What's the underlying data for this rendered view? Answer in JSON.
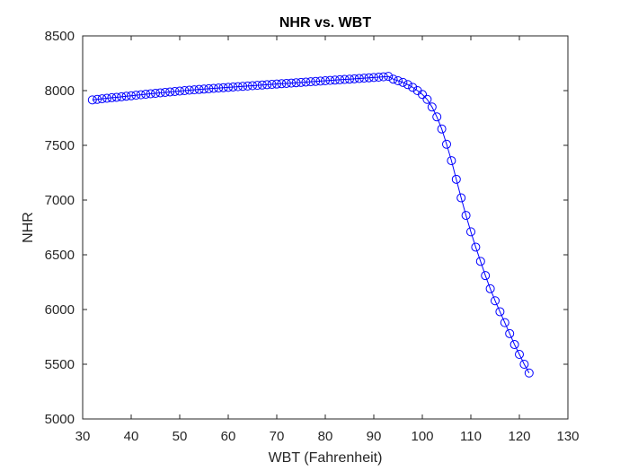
{
  "chart_data": {
    "type": "line",
    "title": "NHR vs. WBT",
    "xlabel": "WBT (Fahrenheit)",
    "ylabel": "NHR",
    "xlim": [
      30,
      130
    ],
    "ylim": [
      5000,
      8500
    ],
    "xticks": [
      30,
      40,
      50,
      60,
      70,
      80,
      90,
      100,
      110,
      120,
      130
    ],
    "yticks": [
      5000,
      5500,
      6000,
      6500,
      7000,
      7500,
      8000,
      8500
    ],
    "grid": false,
    "marker": "circle-open",
    "line_color": "#0000ff",
    "series": [
      {
        "x": [
          32,
          33,
          34,
          35,
          36,
          37,
          38,
          39,
          40,
          41,
          42,
          43,
          44,
          45,
          46,
          47,
          48,
          49,
          50,
          51,
          52,
          53,
          54,
          55,
          56,
          57,
          58,
          59,
          60,
          61,
          62,
          63,
          64,
          65,
          66,
          67,
          68,
          69,
          70,
          71,
          72,
          73,
          74,
          75,
          76,
          77,
          78,
          79,
          80,
          81,
          82,
          83,
          84,
          85,
          86,
          87,
          88,
          89,
          90,
          91,
          92,
          93,
          94,
          95,
          96,
          97,
          98,
          99,
          100,
          101,
          102,
          103,
          104,
          105,
          106,
          107,
          108,
          109,
          110,
          111,
          112,
          113,
          114,
          115,
          116,
          117,
          118,
          119,
          120,
          121,
          122
        ],
        "y": [
          7915,
          7920,
          7925,
          7930,
          7935,
          7939,
          7944,
          7949,
          7953,
          7958,
          7962,
          7967,
          7971,
          7975,
          7980,
          7984,
          7988,
          7992,
          7996,
          8000,
          8004,
          8007,
          8011,
          8014,
          8017,
          8021,
          8024,
          8027,
          8030,
          8033,
          8036,
          8039,
          8042,
          8045,
          8048,
          8051,
          8054,
          8057,
          8060,
          8063,
          8066,
          8069,
          8072,
          8075,
          8078,
          8081,
          8084,
          8087,
          8090,
          8093,
          8096,
          8099,
          8102,
          8105,
          8108,
          8111,
          8114,
          8117,
          8120,
          8123,
          8126,
          8130,
          8105,
          8090,
          8075,
          8055,
          8030,
          8000,
          7965,
          7920,
          7850,
          7760,
          7650,
          7510,
          7360,
          7190,
          7020,
          6860,
          6710,
          6570,
          6440,
          6310,
          6190,
          6080,
          5980,
          5880,
          5780,
          5680,
          5590,
          5500,
          5420
        ]
      }
    ]
  }
}
